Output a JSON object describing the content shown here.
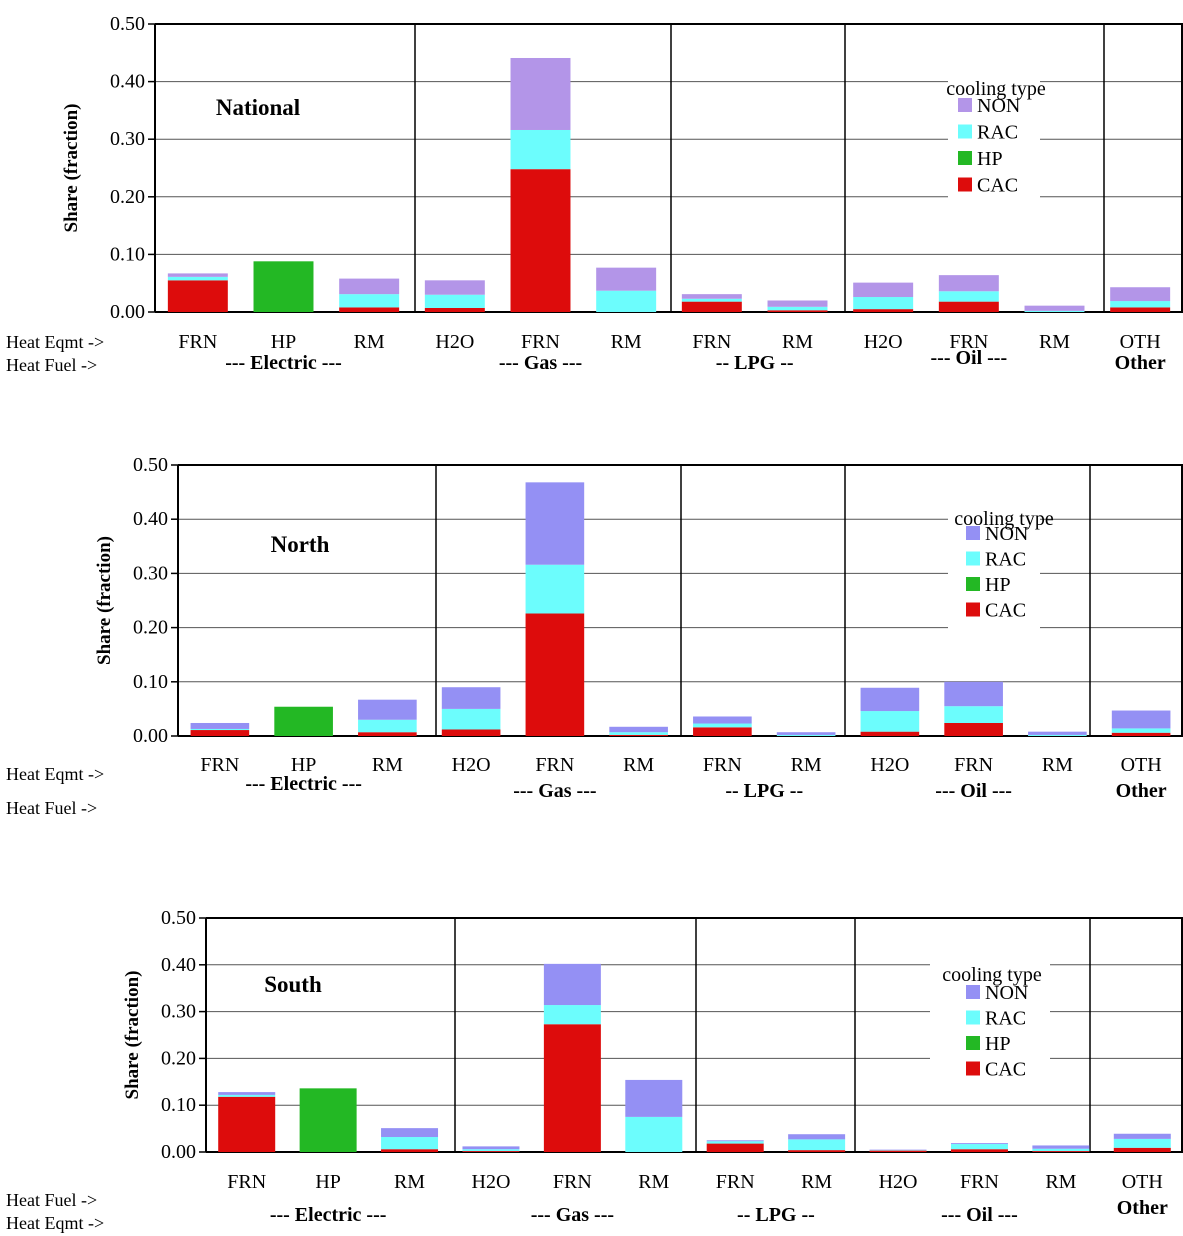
{
  "chart_data": [
    {
      "type": "bar",
      "stacked": true,
      "title": "National",
      "ylabel": "Share (fraction)",
      "ylim": [
        0,
        0.5
      ],
      "yticks": [
        "0.00",
        "0.10",
        "0.20",
        "0.30",
        "0.40",
        "0.50"
      ],
      "grid": true,
      "legend_title": "cooling type",
      "legend_position": "top-right",
      "row_labels": [
        "Heat Eqmt ->",
        "Heat Fuel ->"
      ],
      "categories": [
        "FRN",
        "HP",
        "RM",
        "H2O",
        "FRN",
        "RM",
        "FRN",
        "RM",
        "H2O",
        "FRN",
        "RM",
        "OTH"
      ],
      "fuel_groups": [
        {
          "label": "--- Electric ---",
          "count": 3
        },
        {
          "label": "--- Gas ---",
          "count": 3
        },
        {
          "label": "-- LPG --",
          "count": 2
        },
        {
          "label": "--- Oil ---",
          "count": 3
        },
        {
          "label": "Other",
          "count": 1
        }
      ],
      "series": [
        {
          "name": "CAC",
          "values": [
            0.055,
            0,
            0.008,
            0.007,
            0.248,
            0,
            0.018,
            0.003,
            0.005,
            0.018,
            0,
            0.008
          ]
        },
        {
          "name": "HP",
          "values": [
            0,
            0.088,
            0,
            0,
            0,
            0,
            0,
            0,
            0,
            0,
            0,
            0
          ]
        },
        {
          "name": "RAC",
          "values": [
            0.006,
            0,
            0.023,
            0.023,
            0.068,
            0.037,
            0.005,
            0.006,
            0.021,
            0.018,
            0.002,
            0.011
          ]
        },
        {
          "name": "NON",
          "values": [
            0.006,
            0,
            0.027,
            0.025,
            0.125,
            0.04,
            0.008,
            0.011,
            0.025,
            0.028,
            0.009,
            0.024
          ]
        }
      ]
    },
    {
      "type": "bar",
      "stacked": true,
      "title": "North",
      "ylabel": "Share (fraction)",
      "ylim": [
        0,
        0.5
      ],
      "yticks": [
        "0.00",
        "0.10",
        "0.20",
        "0.30",
        "0.40",
        "0.50"
      ],
      "grid": true,
      "legend_title": "cooling type",
      "legend_position": "top-right",
      "row_labels": [
        "Heat Eqmt ->",
        "Heat Fuel ->"
      ],
      "categories": [
        "FRN",
        "HP",
        "RM",
        "H2O",
        "FRN",
        "RM",
        "FRN",
        "RM",
        "H2O",
        "FRN",
        "RM",
        "OTH"
      ],
      "fuel_groups": [
        {
          "label": "--- Electric ---",
          "count": 3
        },
        {
          "label": "--- Gas ---",
          "count": 3
        },
        {
          "label": "-- LPG --",
          "count": 2
        },
        {
          "label": "--- Oil ---",
          "count": 3
        },
        {
          "label": "Other",
          "count": 1
        }
      ],
      "series": [
        {
          "name": "CAC",
          "values": [
            0.011,
            0,
            0.007,
            0.012,
            0.226,
            0.002,
            0.016,
            0,
            0.008,
            0.024,
            0,
            0.006
          ]
        },
        {
          "name": "HP",
          "values": [
            0,
            0.054,
            0,
            0,
            0,
            0,
            0,
            0,
            0,
            0,
            0,
            0
          ]
        },
        {
          "name": "RAC",
          "values": [
            0.002,
            0,
            0.023,
            0.038,
            0.09,
            0.005,
            0.007,
            0.002,
            0.038,
            0.031,
            0.002,
            0.008
          ]
        },
        {
          "name": "NON",
          "values": [
            0.011,
            0,
            0.037,
            0.04,
            0.152,
            0.01,
            0.013,
            0.005,
            0.043,
            0.045,
            0.006,
            0.033
          ]
        }
      ]
    },
    {
      "type": "bar",
      "stacked": true,
      "title": "South",
      "ylabel": "Share (fraction)",
      "ylim": [
        0,
        0.5
      ],
      "yticks": [
        "0.00",
        "0.10",
        "0.20",
        "0.30",
        "0.40",
        "0.50"
      ],
      "grid": true,
      "legend_title": "cooling type",
      "legend_position": "top-right",
      "row_labels": [
        "Heat Fuel ->",
        "Heat Eqmt ->"
      ],
      "categories": [
        "FRN",
        "HP",
        "RM",
        "H2O",
        "FRN",
        "RM",
        "FRN",
        "RM",
        "H2O",
        "FRN",
        "RM",
        "OTH"
      ],
      "fuel_groups": [
        {
          "label": "--- Electric ---",
          "count": 3
        },
        {
          "label": "--- Gas ---",
          "count": 3
        },
        {
          "label": "-- LPG --",
          "count": 2
        },
        {
          "label": "--- Oil ---",
          "count": 3
        },
        {
          "label": "Other",
          "count": 1
        }
      ],
      "series": [
        {
          "name": "CAC",
          "values": [
            0.118,
            0,
            0.006,
            0.002,
            0.273,
            0,
            0.018,
            0.004,
            0.003,
            0.006,
            0.002,
            0.009
          ]
        },
        {
          "name": "HP",
          "values": [
            0,
            0.136,
            0,
            0,
            0,
            0,
            0,
            0,
            0,
            0,
            0,
            0
          ]
        },
        {
          "name": "RAC",
          "values": [
            0.004,
            0,
            0.026,
            0.004,
            0.041,
            0.075,
            0.005,
            0.023,
            0.001,
            0.011,
            0.005,
            0.019
          ]
        },
        {
          "name": "NON",
          "values": [
            0.006,
            0,
            0.019,
            0.006,
            0.088,
            0.079,
            0.002,
            0.011,
            0.001,
            0.002,
            0.007,
            0.011
          ]
        }
      ]
    }
  ],
  "colors": {
    "CAC": "#dd0c0c",
    "HP": "#23b824",
    "RAC": "#6cfdfd",
    "NON_national": "#b395e8",
    "NON": "#9490f4",
    "grid": "#555555",
    "axis": "#000000"
  }
}
